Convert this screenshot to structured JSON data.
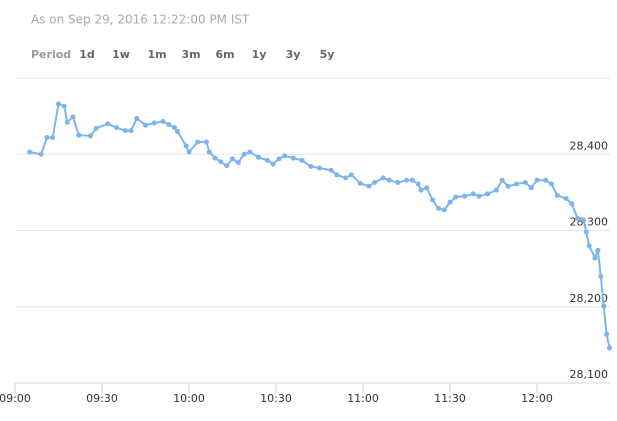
{
  "chart_data": {
    "type": "line",
    "subtitle": "As on Sep 29, 2016 12:22:00 PM IST",
    "range_label": "Period",
    "range_options": [
      "1d",
      "1w",
      "1m",
      "3m",
      "6m",
      "1y",
      "3y",
      "5y"
    ],
    "x": [
      545,
      549,
      551,
      553,
      555,
      557,
      558,
      560,
      562,
      566,
      568,
      572,
      575,
      578,
      580,
      582,
      585,
      588,
      591,
      593,
      595,
      596,
      599,
      600,
      603,
      606,
      607,
      609,
      611,
      613,
      615,
      617,
      619,
      621,
      624,
      627,
      629,
      631,
      633,
      636,
      639,
      642,
      645,
      649,
      651,
      654,
      656,
      659,
      662,
      664,
      667,
      669,
      672,
      675,
      677,
      679,
      680,
      682,
      684,
      686,
      688,
      690,
      692,
      695,
      698,
      700,
      703,
      706,
      708,
      710,
      713,
      716,
      718,
      720,
      723,
      725,
      727,
      730,
      732,
      734,
      736,
      737,
      738,
      740,
      741,
      742,
      743,
      744,
      745
    ],
    "series": [
      {
        "color": "#7cb5ec",
        "values": [
          28403,
          28400,
          28422,
          28422,
          28466,
          28463,
          28442,
          28449,
          28425,
          28424,
          28434,
          28440,
          28435,
          28431,
          28431,
          28447,
          28438,
          28441,
          28443,
          28439,
          28435,
          28430,
          28411,
          28403,
          28416,
          28416,
          28403,
          28395,
          28390,
          28385,
          28394,
          28389,
          28400,
          28403,
          28396,
          28392,
          28387,
          28394,
          28398,
          28395,
          28392,
          28384,
          28382,
          28379,
          28373,
          28369,
          28373,
          28362,
          28358,
          28363,
          28369,
          28366,
          28363,
          28366,
          28366,
          28361,
          28353,
          28356,
          28340,
          28329,
          28327,
          28337,
          28344,
          28345,
          28348,
          28345,
          28348,
          28353,
          28366,
          28358,
          28361,
          28363,
          28356,
          28366,
          28366,
          28361,
          28346,
          28342,
          28335,
          28316,
          28314,
          28298,
          28280,
          28264,
          28274,
          28240,
          28201,
          28164,
          28146
        ]
      }
    ],
    "xlim": [
      540,
      745
    ],
    "xticks": [
      {
        "value": 540,
        "label": "09:00"
      },
      {
        "value": 570,
        "label": "09:30"
      },
      {
        "value": 600,
        "label": "10:00"
      },
      {
        "value": 630,
        "label": "10:30"
      },
      {
        "value": 660,
        "label": "11:00"
      },
      {
        "value": 690,
        "label": "11:30"
      },
      {
        "value": 720,
        "label": "12:00"
      }
    ],
    "ylim": [
      28100,
      28500
    ],
    "yticks": [
      {
        "value": 28100,
        "label": "28,100"
      },
      {
        "value": 28200,
        "label": "28,200"
      },
      {
        "value": 28300,
        "label": "28,300"
      },
      {
        "value": 28400,
        "label": "28,400"
      }
    ],
    "grid": true
  }
}
